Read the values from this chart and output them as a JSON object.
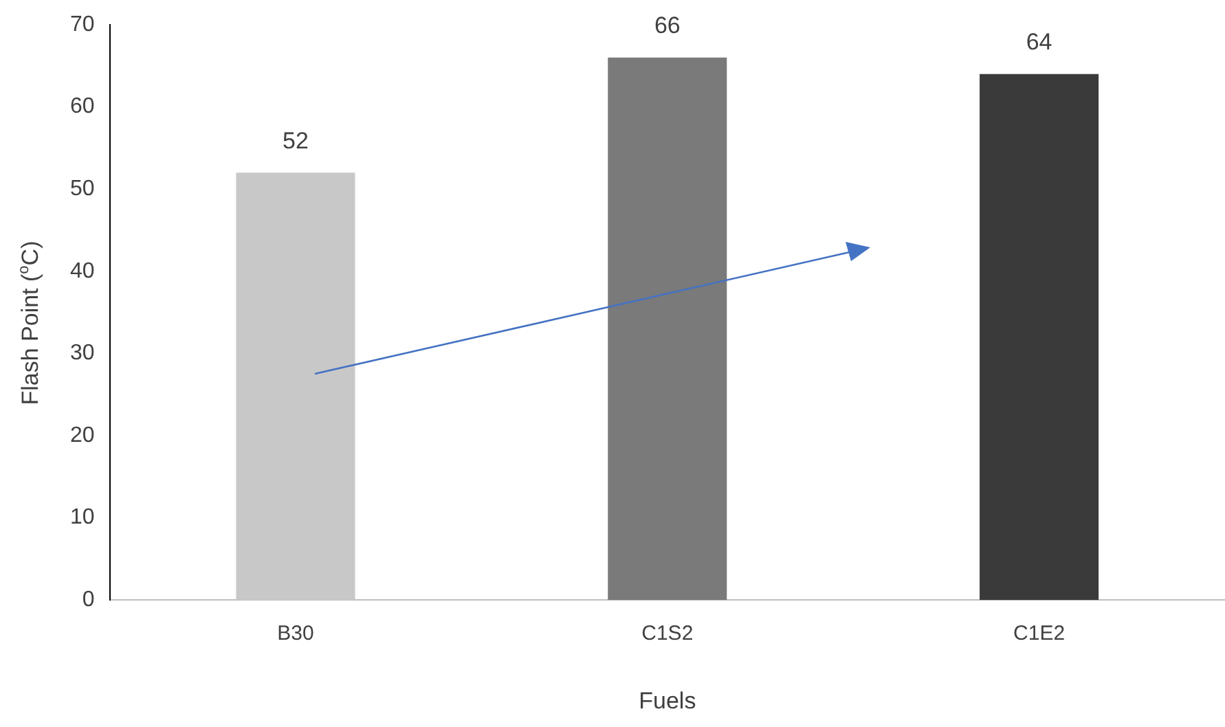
{
  "chart_data": {
    "type": "bar",
    "xlabel": "Fuels",
    "ylabel": "Flash Point ($^{o}$C)",
    "categories": [
      "B30",
      "C1S2",
      "C1E2"
    ],
    "values": [
      52,
      66,
      64
    ],
    "colors": [
      "#c8c8c8",
      "#7a7a7a",
      "#3a3a3a"
    ],
    "ylim": [
      0,
      70
    ],
    "yticks": [
      0,
      10,
      20,
      30,
      40,
      50,
      60,
      70
    ],
    "grid": false,
    "data_labels": true
  }
}
